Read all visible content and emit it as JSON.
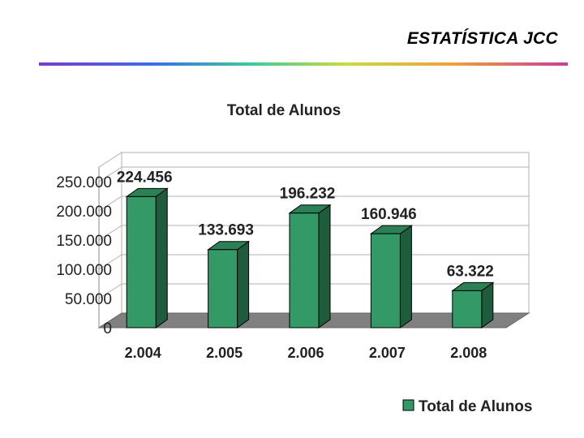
{
  "header": {
    "title": "ESTATÍSTICA JCC"
  },
  "chart_data": {
    "type": "bar",
    "title": "Total de Alunos",
    "categories": [
      "2.004",
      "2.005",
      "2.006",
      "2.007",
      "2.008"
    ],
    "series": [
      {
        "name": "Total de Alunos",
        "values": [
          224456,
          133693,
          196232,
          160946,
          63322
        ],
        "labels": [
          "224.456",
          "133.693",
          "196.232",
          "160.946",
          "63.322"
        ]
      }
    ],
    "yticks": [
      {
        "value": 0,
        "label": "0"
      },
      {
        "value": 50000,
        "label": "50.000"
      },
      {
        "value": 100000,
        "label": "100.000"
      },
      {
        "value": 150000,
        "label": "150.000"
      },
      {
        "value": 200000,
        "label": "200.000"
      },
      {
        "value": 250000,
        "label": "250.000"
      }
    ],
    "ylim": [
      0,
      250000
    ],
    "grid": true,
    "three_d": true,
    "legend_position": "bottom-right",
    "colors": {
      "bar_front": "#339966",
      "bar_side": "#1f5c3d",
      "bar_top": "#2b8055",
      "floor": "#808080",
      "grid": "#b0b0b0"
    }
  }
}
